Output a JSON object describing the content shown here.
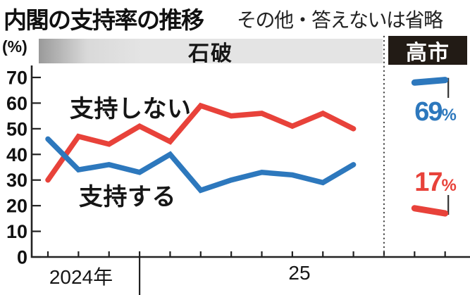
{
  "header": {
    "title": "内閣の支持率の推移",
    "subtitle": "その他・答えないは省略",
    "y_axis_unit": "(%)"
  },
  "periods": {
    "ishiba": "石破",
    "takaichi": "高市"
  },
  "series_labels": {
    "disapprove": "支持しない",
    "approve": "支持する"
  },
  "x_axis": {
    "year_2024": "2024年",
    "year_25": "25"
  },
  "latest": {
    "approve": {
      "value": "69",
      "unit": "%"
    },
    "disapprove": {
      "value": "17",
      "unit": "%"
    }
  },
  "colors": {
    "approve_blue": "#2d78bd",
    "disapprove_red": "#e8423a",
    "ishiba_bar_bg": "#e4e4e4",
    "takaichi_box_bg": "#221b15",
    "axis": "#222222"
  },
  "chart_data": {
    "type": "line",
    "title": "内閣の支持率の推移",
    "note": "その他・答えないは省略",
    "ylabel": "(%)",
    "ylim": [
      0,
      70
    ],
    "y_ticks": [
      70,
      60,
      50,
      40,
      30,
      20,
      10,
      0
    ],
    "x_tick_count": 14,
    "x_labels": [
      "2024年",
      "25"
    ],
    "layout_hints": {
      "year_divider_tick": 3,
      "period_separator_tick": 11,
      "grid": false,
      "legend": "inline labels on plot"
    },
    "periods": [
      {
        "label": "石破",
        "tick_range": [
          0,
          10
        ]
      },
      {
        "label": "高市",
        "tick_range": [
          12,
          13
        ]
      }
    ],
    "series": [
      {
        "name": "支持しない",
        "period": "石破",
        "color": "#e8423a",
        "tick_start": 0,
        "values": [
          30,
          47,
          44,
          51,
          45,
          59,
          55,
          56,
          51,
          56,
          50
        ]
      },
      {
        "name": "支持する",
        "period": "石破",
        "color": "#2d78bd",
        "tick_start": 0,
        "values": [
          46,
          34,
          36,
          33,
          40,
          26,
          30,
          33,
          32,
          29,
          36
        ]
      },
      {
        "name": "支持しない",
        "period": "高市",
        "color": "#e8423a",
        "tick_start": 12,
        "values": [
          19,
          17
        ],
        "latest_label": "17%"
      },
      {
        "name": "支持する",
        "period": "高市",
        "color": "#2d78bd",
        "tick_start": 12,
        "values": [
          68,
          69
        ],
        "latest_label": "69%"
      }
    ]
  }
}
